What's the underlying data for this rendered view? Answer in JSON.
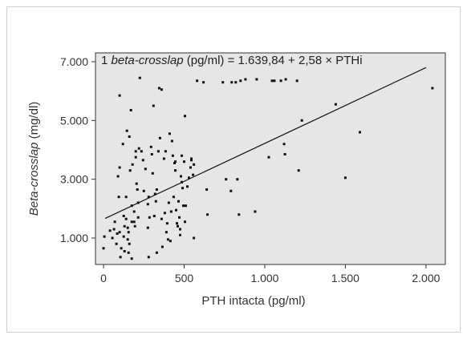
{
  "chart_data": {
    "type": "scatter",
    "equation": {
      "prefix": "1 ",
      "italic": "beta-crosslap",
      "suffix": " (pg/ml) = 1.639,84 + 2,58 × PTHi"
    },
    "ylabel": {
      "italic": "Beta-crosslap",
      "suffix": " (mg/dl)"
    },
    "xlabel": "PTH intacta (pg/ml)",
    "xlim": [
      -50,
      2120
    ],
    "ylim": [
      100,
      7300
    ],
    "x_ticks": [
      0,
      500,
      1000,
      1500,
      2000
    ],
    "x_tick_labels": [
      "0",
      "500",
      "1.000",
      "1.500",
      "2.000"
    ],
    "y_ticks": [
      1000,
      3000,
      5000,
      7000
    ],
    "y_tick_labels": [
      "1.000",
      "3.000",
      "5.000",
      "7.000"
    ],
    "regression": {
      "intercept": 1639.84,
      "slope": 2.58,
      "x_range": [
        10,
        2000
      ]
    },
    "plot_bg": "#e6e6e6",
    "point_color": "#111111",
    "points": [
      [
        0,
        650
      ],
      [
        5,
        1050
      ],
      [
        40,
        1250
      ],
      [
        55,
        1000
      ],
      [
        65,
        1300
      ],
      [
        70,
        1550
      ],
      [
        80,
        800
      ],
      [
        85,
        1150
      ],
      [
        90,
        3100
      ],
      [
        95,
        2400
      ],
      [
        100,
        5850
      ],
      [
        100,
        3400
      ],
      [
        100,
        1200
      ],
      [
        105,
        350
      ],
      [
        110,
        650
      ],
      [
        120,
        4200
      ],
      [
        125,
        1050
      ],
      [
        125,
        1750
      ],
      [
        130,
        1400
      ],
      [
        130,
        550
      ],
      [
        140,
        2400
      ],
      [
        140,
        1650
      ],
      [
        145,
        4650
      ],
      [
        150,
        1350
      ],
      [
        150,
        950
      ],
      [
        155,
        1200
      ],
      [
        155,
        500
      ],
      [
        160,
        800
      ],
      [
        160,
        4450
      ],
      [
        165,
        3300
      ],
      [
        170,
        5350
      ],
      [
        175,
        2100
      ],
      [
        175,
        1550
      ],
      [
        175,
        300
      ],
      [
        180,
        3500
      ],
      [
        190,
        1900
      ],
      [
        190,
        1550
      ],
      [
        195,
        1400
      ],
      [
        200,
        3950
      ],
      [
        200,
        3750
      ],
      [
        205,
        2850
      ],
      [
        210,
        2650
      ],
      [
        215,
        2200
      ],
      [
        215,
        1700
      ],
      [
        220,
        4050
      ],
      [
        225,
        6450
      ],
      [
        235,
        3950
      ],
      [
        245,
        3650
      ],
      [
        250,
        2600
      ],
      [
        260,
        3350
      ],
      [
        275,
        2150
      ],
      [
        275,
        1350
      ],
      [
        280,
        2400
      ],
      [
        280,
        350
      ],
      [
        285,
        1700
      ],
      [
        295,
        4100
      ],
      [
        300,
        3850
      ],
      [
        305,
        3200
      ],
      [
        310,
        5500
      ],
      [
        315,
        1750
      ],
      [
        320,
        2500
      ],
      [
        325,
        2250
      ],
      [
        330,
        2650
      ],
      [
        330,
        500
      ],
      [
        340,
        3950
      ],
      [
        345,
        6100
      ],
      [
        350,
        4400
      ],
      [
        360,
        6050
      ],
      [
        360,
        1650
      ],
      [
        365,
        700
      ],
      [
        375,
        3700
      ],
      [
        380,
        1850
      ],
      [
        385,
        3950
      ],
      [
        390,
        1200
      ],
      [
        395,
        1500
      ],
      [
        400,
        950
      ],
      [
        405,
        2200
      ],
      [
        410,
        4550
      ],
      [
        415,
        900
      ],
      [
        420,
        1900
      ],
      [
        425,
        4300
      ],
      [
        430,
        3800
      ],
      [
        435,
        2400
      ],
      [
        440,
        3550
      ],
      [
        445,
        3600
      ],
      [
        445,
        3300
      ],
      [
        450,
        1950
      ],
      [
        455,
        1500
      ],
      [
        460,
        1400
      ],
      [
        465,
        2250
      ],
      [
        470,
        1700
      ],
      [
        475,
        1300
      ],
      [
        475,
        1100
      ],
      [
        480,
        3100
      ],
      [
        485,
        3800
      ],
      [
        485,
        2900
      ],
      [
        490,
        2700
      ],
      [
        495,
        2100
      ],
      [
        500,
        3600
      ],
      [
        505,
        5150
      ],
      [
        505,
        1550
      ],
      [
        510,
        2100
      ],
      [
        520,
        2750
      ],
      [
        530,
        3050
      ],
      [
        540,
        3400
      ],
      [
        545,
        3650
      ],
      [
        545,
        3700
      ],
      [
        555,
        3150
      ],
      [
        560,
        3500
      ],
      [
        560,
        1000
      ],
      [
        580,
        6350
      ],
      [
        620,
        6300
      ],
      [
        640,
        2650
      ],
      [
        645,
        1800
      ],
      [
        740,
        6300
      ],
      [
        760,
        3000
      ],
      [
        790,
        2600
      ],
      [
        795,
        6300
      ],
      [
        820,
        6300
      ],
      [
        830,
        3000
      ],
      [
        840,
        1800
      ],
      [
        850,
        6350
      ],
      [
        880,
        6400
      ],
      [
        940,
        1900
      ],
      [
        950,
        6400
      ],
      [
        1025,
        3750
      ],
      [
        1045,
        6350
      ],
      [
        1060,
        6350
      ],
      [
        1100,
        6350
      ],
      [
        1120,
        4200
      ],
      [
        1125,
        3850
      ],
      [
        1130,
        6400
      ],
      [
        1200,
        6350
      ],
      [
        1210,
        3300
      ],
      [
        1230,
        5000
      ],
      [
        1440,
        5550
      ],
      [
        1500,
        3050
      ],
      [
        1590,
        4600
      ],
      [
        2040,
        6100
      ]
    ]
  }
}
